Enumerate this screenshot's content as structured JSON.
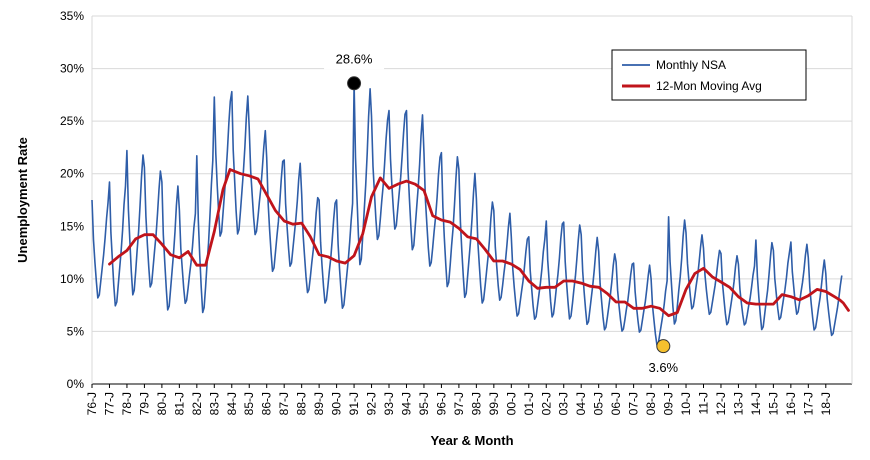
{
  "chart_data": {
    "type": "line",
    "title": "",
    "xlabel": "Year & Month",
    "ylabel": "Unemployment Rate",
    "ylim": [
      0,
      35
    ],
    "y_ticks": [
      "0%",
      "5%",
      "10%",
      "15%",
      "20%",
      "25%",
      "30%",
      "35%"
    ],
    "x_range": [
      1976.0,
      2018.7
    ],
    "x_ticks": [
      "76-J",
      "77-J",
      "78-J",
      "79-J",
      "80-J",
      "81-J",
      "82-J",
      "83-J",
      "84-J",
      "85-J",
      "86-J",
      "87-J",
      "88-J",
      "89-J",
      "90-J",
      "91-J",
      "92-J",
      "93-J",
      "94-J",
      "95-J",
      "96-J",
      "97-J",
      "98-J",
      "99-J",
      "00-J",
      "01-J",
      "02-J",
      "03-J",
      "04-J",
      "05-J",
      "06-J",
      "07-J",
      "08-J",
      "09-J",
      "10-J",
      "11-J",
      "12-J",
      "13-J",
      "14-J",
      "15-J",
      "16-J",
      "17-J",
      "18-J"
    ],
    "grid": true,
    "legend_position": "top-right",
    "series": [
      {
        "name": "Monthly NSA",
        "color": "#2e5da8",
        "seasonal_pattern": [
          1.0,
          0.6,
          0.38,
          0.18,
          0.02,
          0.05,
          0.18,
          0.32,
          0.45,
          0.62,
          0.82,
          0.97
        ],
        "yearly": [
          {
            "year": 1976,
            "low": 8.0,
            "high": 17.5
          },
          {
            "year": 1977,
            "low": 7.2,
            "high": 19.2
          },
          {
            "year": 1978,
            "low": 8.2,
            "high": 22.2
          },
          {
            "year": 1979,
            "low": 9.0,
            "high": 20.6
          },
          {
            "year": 1980,
            "low": 6.8,
            "high": 19.2
          },
          {
            "year": 1981,
            "low": 7.5,
            "high": 16.5
          },
          {
            "year": 1982,
            "low": 6.5,
            "high": 21.7
          },
          {
            "year": 1983,
            "low": 13.8,
            "high": 27.3
          },
          {
            "year": 1984,
            "low": 14.0,
            "high": 27.8
          },
          {
            "year": 1985,
            "low": 14.0,
            "high": 24.4
          },
          {
            "year": 1986,
            "low": 10.5,
            "high": 21.5
          },
          {
            "year": 1987,
            "low": 11.0,
            "high": 21.3
          },
          {
            "year": 1988,
            "low": 8.5,
            "high": 18.0
          },
          {
            "year": 1989,
            "low": 7.5,
            "high": 17.5
          },
          {
            "year": 1990,
            "low": 7.0,
            "high": 17.5
          },
          {
            "year": 1991,
            "low": 11.0,
            "high": 28.6
          },
          {
            "year": 1992,
            "low": 13.5,
            "high": 25.5
          },
          {
            "year": 1993,
            "low": 14.5,
            "high": 26.0
          },
          {
            "year": 1994,
            "low": 12.5,
            "high": 26.0
          },
          {
            "year": 1995,
            "low": 11.0,
            "high": 21.9
          },
          {
            "year": 1996,
            "low": 9.0,
            "high": 22.0
          },
          {
            "year": 1997,
            "low": 8.0,
            "high": 20.4
          },
          {
            "year": 1998,
            "low": 7.5,
            "high": 17.6
          },
          {
            "year": 1999,
            "low": 7.8,
            "high": 16.5
          },
          {
            "year": 2000,
            "low": 6.3,
            "high": 14.0
          },
          {
            "year": 2001,
            "low": 6.0,
            "high": 14.0
          },
          {
            "year": 2002,
            "low": 6.2,
            "high": 15.5
          },
          {
            "year": 2003,
            "low": 6.0,
            "high": 15.4
          },
          {
            "year": 2004,
            "low": 5.5,
            "high": 14.2
          },
          {
            "year": 2005,
            "low": 5.0,
            "high": 12.6
          },
          {
            "year": 2006,
            "low": 4.9,
            "high": 11.6
          },
          {
            "year": 2007,
            "low": 4.8,
            "high": 11.5
          },
          {
            "year": 2008,
            "low": 3.6,
            "high": 10.0
          },
          {
            "year": 2009,
            "low": 5.5,
            "high": 15.9
          },
          {
            "year": 2010,
            "low": 7.0,
            "high": 14.4
          },
          {
            "year": 2011,
            "low": 6.5,
            "high": 12.9
          },
          {
            "year": 2012,
            "low": 5.5,
            "high": 12.4
          },
          {
            "year": 2013,
            "low": 5.5,
            "high": 11.4
          },
          {
            "year": 2014,
            "low": 5.0,
            "high": 13.7
          },
          {
            "year": 2015,
            "low": 6.0,
            "high": 12.7
          },
          {
            "year": 2016,
            "low": 6.5,
            "high": 13.5
          },
          {
            "year": 2017,
            "low": 5.0,
            "high": 12.0
          },
          {
            "year": 2018,
            "low": 4.5,
            "high": 10.5
          }
        ]
      },
      {
        "name": "12-Mon Moving Avg",
        "color": "#c0141b",
        "points": [
          [
            1977.0,
            11.4
          ],
          [
            1977.5,
            12.1
          ],
          [
            1978.0,
            12.7
          ],
          [
            1978.5,
            13.8
          ],
          [
            1979.0,
            14.2
          ],
          [
            1979.5,
            14.2
          ],
          [
            1980.0,
            13.3
          ],
          [
            1980.5,
            12.3
          ],
          [
            1981.0,
            12.0
          ],
          [
            1981.5,
            12.6
          ],
          [
            1982.0,
            11.3
          ],
          [
            1982.5,
            11.3
          ],
          [
            1983.0,
            14.5
          ],
          [
            1983.5,
            18.5
          ],
          [
            1983.9,
            20.4
          ],
          [
            1984.5,
            20.0
          ],
          [
            1985.0,
            19.8
          ],
          [
            1985.5,
            19.5
          ],
          [
            1986.0,
            18.0
          ],
          [
            1986.5,
            16.5
          ],
          [
            1987.0,
            15.5
          ],
          [
            1987.5,
            15.2
          ],
          [
            1988.0,
            15.3
          ],
          [
            1988.5,
            14.0
          ],
          [
            1989.0,
            12.3
          ],
          [
            1989.5,
            12.1
          ],
          [
            1990.0,
            11.7
          ],
          [
            1990.5,
            11.5
          ],
          [
            1991.0,
            12.2
          ],
          [
            1991.5,
            14.3
          ],
          [
            1992.0,
            17.8
          ],
          [
            1992.5,
            19.6
          ],
          [
            1993.0,
            18.6
          ],
          [
            1993.5,
            19.0
          ],
          [
            1994.0,
            19.3
          ],
          [
            1994.5,
            19.0
          ],
          [
            1995.0,
            18.4
          ],
          [
            1995.5,
            16.0
          ],
          [
            1996.0,
            15.6
          ],
          [
            1996.5,
            15.4
          ],
          [
            1997.0,
            14.8
          ],
          [
            1997.5,
            14.0
          ],
          [
            1998.0,
            13.8
          ],
          [
            1998.5,
            12.8
          ],
          [
            1999.0,
            11.7
          ],
          [
            1999.5,
            11.7
          ],
          [
            2000.0,
            11.4
          ],
          [
            2000.5,
            10.9
          ],
          [
            2001.0,
            9.8
          ],
          [
            2001.5,
            9.1
          ],
          [
            2002.0,
            9.2
          ],
          [
            2002.5,
            9.2
          ],
          [
            2003.0,
            9.8
          ],
          [
            2003.5,
            9.8
          ],
          [
            2004.0,
            9.6
          ],
          [
            2004.5,
            9.3
          ],
          [
            2005.0,
            9.2
          ],
          [
            2005.5,
            8.6
          ],
          [
            2006.0,
            7.8
          ],
          [
            2006.5,
            7.8
          ],
          [
            2007.0,
            7.2
          ],
          [
            2007.5,
            7.2
          ],
          [
            2008.0,
            7.4
          ],
          [
            2008.5,
            7.2
          ],
          [
            2009.0,
            6.5
          ],
          [
            2009.5,
            6.8
          ],
          [
            2010.0,
            9.0
          ],
          [
            2010.5,
            10.5
          ],
          [
            2011.0,
            11.0
          ],
          [
            2011.5,
            10.2
          ],
          [
            2012.0,
            9.7
          ],
          [
            2012.5,
            9.2
          ],
          [
            2013.0,
            8.3
          ],
          [
            2013.5,
            7.7
          ],
          [
            2014.0,
            7.6
          ],
          [
            2014.5,
            7.6
          ],
          [
            2015.0,
            7.6
          ],
          [
            2015.5,
            8.5
          ],
          [
            2016.0,
            8.3
          ],
          [
            2016.5,
            8.0
          ],
          [
            2017.0,
            8.4
          ],
          [
            2017.5,
            9.0
          ],
          [
            2018.0,
            8.8
          ],
          [
            2018.5,
            8.3
          ],
          [
            2018.8,
            8.0
          ],
          [
            2019.0,
            7.7
          ],
          [
            2019.3,
            7.0
          ]
        ]
      }
    ],
    "annotations": [
      {
        "label": "28.6%",
        "x": 1991.0,
        "y": 28.6,
        "marker_color": "#000000"
      },
      {
        "label": "3.6%",
        "x": 2008.7,
        "y": 3.6,
        "marker_color": "#f5c02e"
      }
    ]
  }
}
